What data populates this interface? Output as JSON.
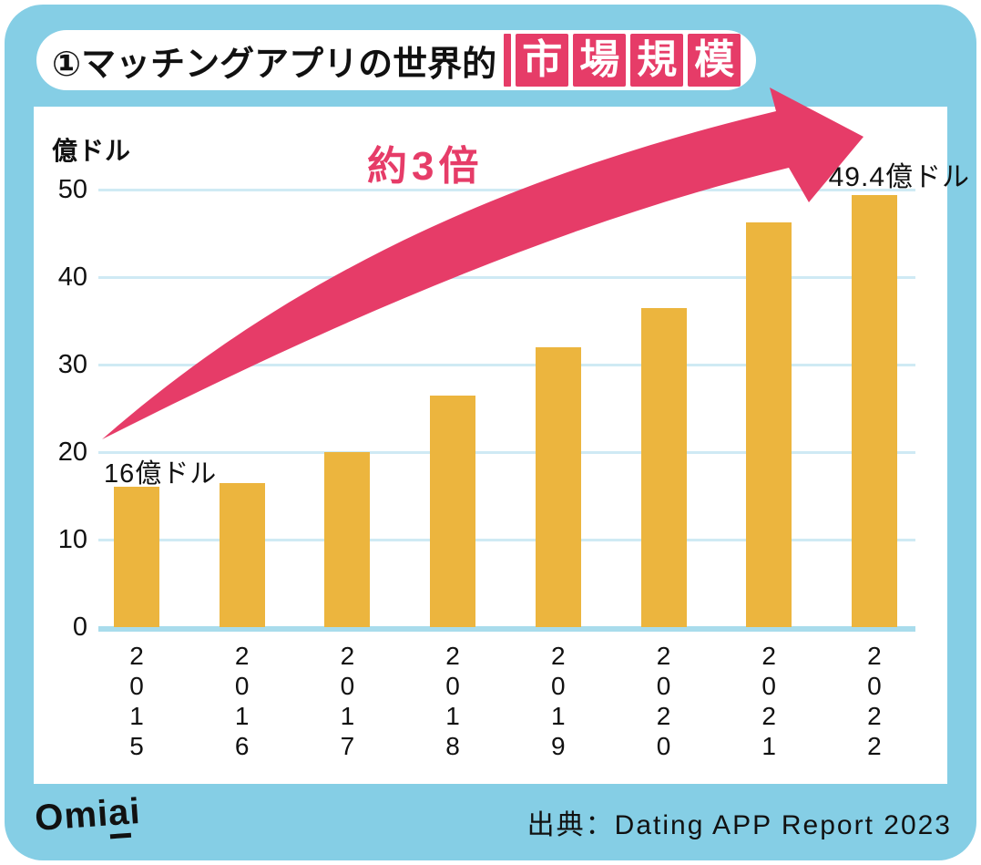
{
  "colors": {
    "card_background": "#85cee5",
    "accent_pink": "#e63c68",
    "bar_yellow": "#ecb53e",
    "gridline_blue": "#cfeaf4",
    "axis_line_blue": "#a9dcec",
    "text_ink": "#111111",
    "panel_white": "#ffffff"
  },
  "header": {
    "title_plain": "①マッチングアプリの世界的",
    "title_boxed_chars": [
      "市",
      "場",
      "規",
      "模"
    ]
  },
  "chart_data": {
    "type": "bar",
    "title": "①マッチングアプリの世界的市場規模",
    "unit_label": "億ドル",
    "categories": [
      "2015",
      "2016",
      "2017",
      "2018",
      "2019",
      "2020",
      "2021",
      "2022"
    ],
    "values": [
      16,
      16.5,
      20,
      26.5,
      32,
      36.5,
      46.2,
      49.4
    ],
    "ylim": [
      0,
      50
    ],
    "yticks": [
      0,
      10,
      20,
      30,
      40,
      50
    ],
    "grid": true,
    "legend": "none",
    "annotations": {
      "start_value_label": "16億ドル",
      "end_value_label": "49.4億ドル",
      "growth_label": "約3倍"
    }
  },
  "footer": {
    "logo_pre": "Omi",
    "logo_underlined": "a",
    "logo_post": "i",
    "source": "出典：Dating APP Report 2023"
  }
}
